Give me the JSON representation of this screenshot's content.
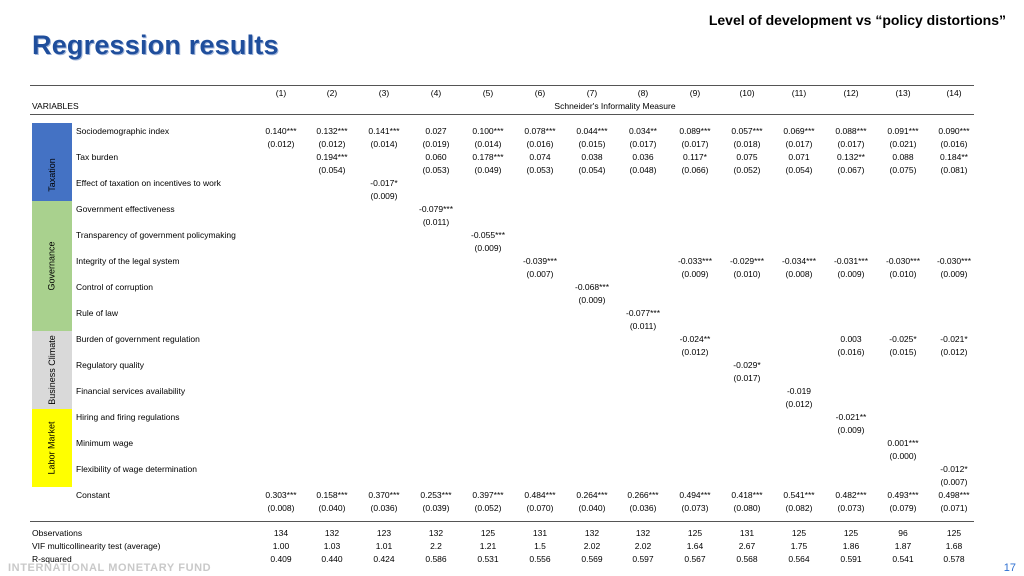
{
  "header": {
    "top_title": "Level of development vs “policy distortions”",
    "title": "Regression results"
  },
  "table": {
    "columns": [
      "(1)",
      "(2)",
      "(3)",
      "(4)",
      "(5)",
      "(6)",
      "(7)",
      "(8)",
      "(9)",
      "(10)",
      "(11)",
      "(12)",
      "(13)",
      "(14)"
    ],
    "variables_label": "VARIABLES",
    "dependent_variable": "Schneider's Informality Measure",
    "groups": [
      {
        "label": "",
        "color": "#4472c4"
      },
      {
        "label": "Taxation",
        "color": "#4472c4"
      },
      {
        "label": "Governance",
        "color": "#a9d18e"
      },
      {
        "label": "Business Climate",
        "color": "#d9d9d9"
      },
      {
        "label": "Labor Market",
        "color": "#ffff00"
      }
    ],
    "rows": [
      {
        "label": "Sociodemographic index",
        "coef": [
          "0.140***",
          "0.132***",
          "0.141***",
          "0.027",
          "0.100***",
          "0.078***",
          "0.044***",
          "0.034**",
          "0.089***",
          "0.057***",
          "0.069***",
          "0.088***",
          "0.091***",
          "0.090***"
        ],
        "se": [
          "(0.012)",
          "(0.012)",
          "(0.014)",
          "(0.019)",
          "(0.014)",
          "(0.016)",
          "(0.015)",
          "(0.017)",
          "(0.017)",
          "(0.018)",
          "(0.017)",
          "(0.017)",
          "(0.021)",
          "(0.016)"
        ]
      },
      {
        "label": "Tax burden",
        "coef": [
          "",
          "0.194***",
          "",
          "0.060",
          "0.178***",
          "0.074",
          "0.038",
          "0.036",
          "0.117*",
          "0.075",
          "0.071",
          "0.132**",
          "0.088",
          "0.184**"
        ],
        "se": [
          "",
          "(0.054)",
          "",
          "(0.053)",
          "(0.049)",
          "(0.053)",
          "(0.054)",
          "(0.048)",
          "(0.066)",
          "(0.052)",
          "(0.054)",
          "(0.067)",
          "(0.075)",
          "(0.081)"
        ]
      },
      {
        "label": "Effect of taxation on incentives to work",
        "coef": [
          "",
          "",
          "-0.017*",
          "",
          "",
          "",
          "",
          "",
          "",
          "",
          "",
          "",
          "",
          ""
        ],
        "se": [
          "",
          "",
          "(0.009)",
          "",
          "",
          "",
          "",
          "",
          "",
          "",
          "",
          "",
          "",
          ""
        ]
      },
      {
        "label": "Government effectiveness",
        "coef": [
          "",
          "",
          "",
          "-0.079***",
          "",
          "",
          "",
          "",
          "",
          "",
          "",
          "",
          "",
          ""
        ],
        "se": [
          "",
          "",
          "",
          "(0.011)",
          "",
          "",
          "",
          "",
          "",
          "",
          "",
          "",
          "",
          ""
        ]
      },
      {
        "label": "Transparency of government policymaking",
        "coef": [
          "",
          "",
          "",
          "",
          "-0.055***",
          "",
          "",
          "",
          "",
          "",
          "",
          "",
          "",
          ""
        ],
        "se": [
          "",
          "",
          "",
          "",
          "(0.009)",
          "",
          "",
          "",
          "",
          "",
          "",
          "",
          "",
          ""
        ]
      },
      {
        "label": "Integrity of the legal system",
        "coef": [
          "",
          "",
          "",
          "",
          "",
          "-0.039***",
          "",
          "",
          "-0.033***",
          "-0.029***",
          "-0.034***",
          "-0.031***",
          "-0.030***",
          "-0.030***"
        ],
        "se": [
          "",
          "",
          "",
          "",
          "",
          "(0.007)",
          "",
          "",
          "(0.009)",
          "(0.010)",
          "(0.008)",
          "(0.009)",
          "(0.010)",
          "(0.009)"
        ]
      },
      {
        "label": "Control of corruption",
        "coef": [
          "",
          "",
          "",
          "",
          "",
          "",
          "-0.068***",
          "",
          "",
          "",
          "",
          "",
          "",
          ""
        ],
        "se": [
          "",
          "",
          "",
          "",
          "",
          "",
          "(0.009)",
          "",
          "",
          "",
          "",
          "",
          "",
          ""
        ]
      },
      {
        "label": "Rule of law",
        "coef": [
          "",
          "",
          "",
          "",
          "",
          "",
          "",
          "-0.077***",
          "",
          "",
          "",
          "",
          "",
          ""
        ],
        "se": [
          "",
          "",
          "",
          "",
          "",
          "",
          "",
          "(0.011)",
          "",
          "",
          "",
          "",
          "",
          ""
        ]
      },
      {
        "label": "Burden of government regulation",
        "coef": [
          "",
          "",
          "",
          "",
          "",
          "",
          "",
          "",
          "-0.024**",
          "",
          "",
          "0.003",
          "-0.025*",
          "-0.021*"
        ],
        "se": [
          "",
          "",
          "",
          "",
          "",
          "",
          "",
          "",
          "(0.012)",
          "",
          "",
          "(0.016)",
          "(0.015)",
          "(0.012)"
        ]
      },
      {
        "label": "Regulatory quality",
        "coef": [
          "",
          "",
          "",
          "",
          "",
          "",
          "",
          "",
          "",
          "-0.029*",
          "",
          "",
          "",
          ""
        ],
        "se": [
          "",
          "",
          "",
          "",
          "",
          "",
          "",
          "",
          "",
          "(0.017)",
          "",
          "",
          "",
          ""
        ]
      },
      {
        "label": "Financial services availability",
        "coef": [
          "",
          "",
          "",
          "",
          "",
          "",
          "",
          "",
          "",
          "",
          "-0.019",
          "",
          "",
          ""
        ],
        "se": [
          "",
          "",
          "",
          "",
          "",
          "",
          "",
          "",
          "",
          "",
          "(0.012)",
          "",
          "",
          ""
        ]
      },
      {
        "label": "Hiring and firing regulations",
        "coef": [
          "",
          "",
          "",
          "",
          "",
          "",
          "",
          "",
          "",
          "",
          "",
          "-0.021**",
          "",
          ""
        ],
        "se": [
          "",
          "",
          "",
          "",
          "",
          "",
          "",
          "",
          "",
          "",
          "",
          "(0.009)",
          "",
          ""
        ]
      },
      {
        "label": "Minimum wage",
        "coef": [
          "",
          "",
          "",
          "",
          "",
          "",
          "",
          "",
          "",
          "",
          "",
          "",
          "0.001***",
          ""
        ],
        "se": [
          "",
          "",
          "",
          "",
          "",
          "",
          "",
          "",
          "",
          "",
          "",
          "",
          "(0.000)",
          ""
        ]
      },
      {
        "label": "Flexibility of wage determination",
        "coef": [
          "",
          "",
          "",
          "",
          "",
          "",
          "",
          "",
          "",
          "",
          "",
          "",
          "",
          "-0.012*"
        ],
        "se": [
          "",
          "",
          "",
          "",
          "",
          "",
          "",
          "",
          "",
          "",
          "",
          "",
          "",
          "(0.007)"
        ]
      },
      {
        "label": "Constant",
        "coef": [
          "0.303***",
          "0.158***",
          "0.370***",
          "0.253***",
          "0.397***",
          "0.484***",
          "0.264***",
          "0.266***",
          "0.494***",
          "0.418***",
          "0.541***",
          "0.482***",
          "0.493***",
          "0.498***"
        ],
        "se": [
          "(0.008)",
          "(0.040)",
          "(0.036)",
          "(0.039)",
          "(0.052)",
          "(0.070)",
          "(0.040)",
          "(0.036)",
          "(0.073)",
          "(0.080)",
          "(0.082)",
          "(0.073)",
          "(0.079)",
          "(0.071)"
        ]
      }
    ],
    "stats": [
      {
        "label": "Observations",
        "values": [
          "134",
          "132",
          "123",
          "132",
          "125",
          "131",
          "132",
          "132",
          "125",
          "131",
          "125",
          "125",
          "96",
          "125"
        ]
      },
      {
        "label": "VIF multicollinearity test (average)",
        "values": [
          "1.00",
          "1.03",
          "1.01",
          "2.2",
          "1.21",
          "1.5",
          "2.02",
          "2.02",
          "1.64",
          "2.67",
          "1.75",
          "1.86",
          "1.87",
          "1.68"
        ]
      },
      {
        "label": "R-squared",
        "values": [
          "0.409",
          "0.440",
          "0.424",
          "0.586",
          "0.531",
          "0.556",
          "0.569",
          "0.597",
          "0.567",
          "0.568",
          "0.564",
          "0.591",
          "0.541",
          "0.578"
        ]
      }
    ]
  },
  "footer": {
    "logo_text": "INTERNATIONAL MONETARY FUND",
    "page_number": "17"
  }
}
